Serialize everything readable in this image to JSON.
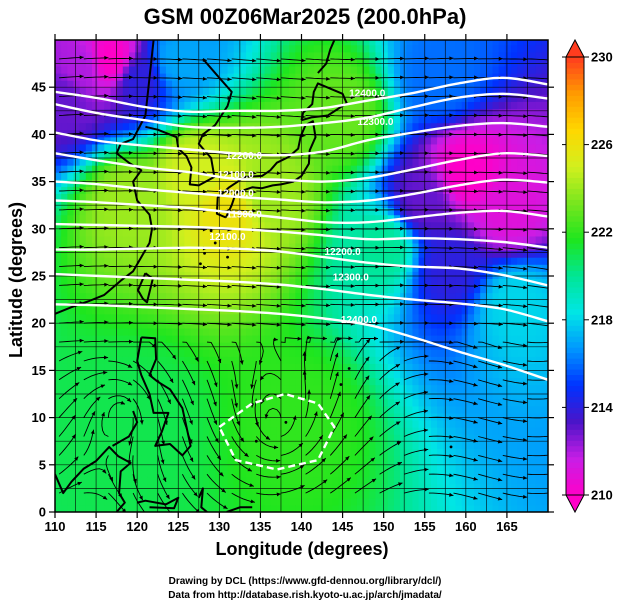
{
  "chart_data": {
    "type": "heatmap",
    "title": "GSM 00Z06Mar2025 (200.0hPa)",
    "xlabel": "Longitude (degrees)",
    "ylabel": "Latitude  (degrees)",
    "xlim": [
      110,
      170
    ],
    "ylim": [
      0,
      50
    ],
    "x_ticks": [
      "110",
      "115",
      "120",
      "125",
      "130",
      "135",
      "140",
      "145",
      "150",
      "155",
      "160",
      "165"
    ],
    "y_ticks": [
      "0",
      "5",
      "10",
      "15",
      "20",
      "25",
      "30",
      "35",
      "40",
      "45"
    ],
    "colorbar": {
      "min": 210,
      "max": 230,
      "ticks": [
        "210",
        "214",
        "218",
        "222",
        "226",
        "230"
      ],
      "colors": [
        "#ff00c8",
        "#c81ee6",
        "#4b14c8",
        "#0032ff",
        "#0096ff",
        "#00e6e6",
        "#00e696",
        "#1ee61e",
        "#78e61e",
        "#d2f01e",
        "#ffd700",
        "#ff9b00",
        "#ff3c1e"
      ]
    },
    "temperature_field": [
      {
        "lon": 113,
        "lat": 47,
        "value": 212
      },
      {
        "lon": 117,
        "lat": 48,
        "value": 210
      },
      {
        "lon": 111,
        "lat": 44,
        "value": 213
      },
      {
        "lon": 120,
        "lat": 46,
        "value": 214
      },
      {
        "lon": 125,
        "lat": 48,
        "value": 217
      },
      {
        "lon": 127,
        "lat": 36,
        "value": 225
      },
      {
        "lon": 131,
        "lat": 32,
        "value": 226
      },
      {
        "lon": 119,
        "lat": 33,
        "value": 224
      },
      {
        "lon": 136,
        "lat": 34,
        "value": 224
      },
      {
        "lon": 145,
        "lat": 42,
        "value": 223
      },
      {
        "lon": 157,
        "lat": 46,
        "value": 216
      },
      {
        "lon": 160,
        "lat": 36,
        "value": 210
      },
      {
        "lon": 155,
        "lat": 33,
        "value": 213
      },
      {
        "lon": 165,
        "lat": 32,
        "value": 211
      },
      {
        "lon": 158,
        "lat": 26,
        "value": 214
      },
      {
        "lon": 166,
        "lat": 22,
        "value": 218
      },
      {
        "lon": 150,
        "lat": 28,
        "value": 220
      },
      {
        "lon": 140,
        "lat": 10,
        "value": 222
      },
      {
        "lon": 120,
        "lat": 10,
        "value": 221
      }
    ],
    "height_contours": [
      {
        "label": "12400.0",
        "values": [
          44.5,
          43.8,
          42.9,
          42.4,
          42.5,
          42.5,
          42.8,
          43.6,
          44.4,
          45.4,
          46.0,
          45.3
        ]
      },
      {
        "label": "12300.0",
        "values": [
          43.2,
          42.2,
          41.5,
          40.8,
          40.7,
          40.8,
          41.2,
          41.8,
          42.9,
          43.9,
          44.3,
          43.8
        ]
      },
      {
        "label": "12200.0",
        "values": [
          40.2,
          39.3,
          38.8,
          38.4,
          38.0,
          37.8,
          38.2,
          39.4,
          40.2,
          40.9,
          41.2,
          40.8
        ]
      },
      {
        "label": "12100.0",
        "values": [
          38.0,
          37.2,
          36.5,
          36.0,
          35.3,
          35.2,
          35.0,
          35.4,
          36.3,
          37.3,
          38.0,
          37.7
        ]
      },
      {
        "label": "12000.0",
        "values": [
          35.0,
          34.7,
          34.2,
          33.8,
          33.4,
          33.1,
          32.8,
          33.0,
          33.7,
          34.6,
          35.2,
          34.9
        ]
      },
      {
        "label": "11900.0",
        "values": [
          33.0,
          32.8,
          32.5,
          32.2,
          31.7,
          31.2,
          30.7,
          30.7,
          31.2,
          31.7,
          31.9,
          31.3
        ]
      },
      {
        "label": "12100.0",
        "values": [
          30.5,
          30.4,
          30.3,
          30.2,
          30.0,
          29.7,
          29.3,
          28.9,
          29.0,
          28.9,
          28.6,
          28.0
        ]
      },
      {
        "label": "12200.0",
        "values": [
          27.8,
          27.8,
          27.9,
          28.0,
          27.9,
          27.6,
          27.0,
          26.4,
          26.0,
          25.8,
          25.1,
          24.0
        ]
      },
      {
        "label": "12300.0",
        "values": [
          25.2,
          25.0,
          24.8,
          24.6,
          24.4,
          24.1,
          23.6,
          23.0,
          22.5,
          22.1,
          21.5,
          20.2
        ]
      },
      {
        "label": "12400.0",
        "values": [
          22.0,
          21.9,
          21.7,
          21.5,
          21.3,
          21.0,
          20.5,
          19.8,
          18.5,
          17.0,
          15.6,
          14.0
        ]
      }
    ],
    "contour_labels": [
      {
        "text": "12400.0",
        "lon": 148,
        "lat": 44
      },
      {
        "text": "12300.0",
        "lon": 149,
        "lat": 41
      },
      {
        "text": "12200.0",
        "lon": 133,
        "lat": 37.4
      },
      {
        "text": "12100.0",
        "lon": 132,
        "lat": 35.4
      },
      {
        "text": "12000.0",
        "lon": 132,
        "lat": 33.4
      },
      {
        "text": "11900.0",
        "lon": 133,
        "lat": 31.2
      },
      {
        "text": "12100.0",
        "lon": 131,
        "lat": 28.8
      },
      {
        "text": "12200.0",
        "lon": 145,
        "lat": 27.2
      },
      {
        "text": "12300.0",
        "lon": 146,
        "lat": 24.5
      },
      {
        "text": "12400.0",
        "lon": 147,
        "lat": 20.0
      }
    ],
    "anticyclone_loop": {
      "lon": [
        130,
        134,
        138,
        142,
        144,
        142,
        137,
        132,
        130
      ],
      "lat": [
        9,
        11.5,
        12.5,
        11.5,
        9,
        5.5,
        4.5,
        5.5,
        9
      ]
    },
    "wind_rows_lat": [
      48,
      46,
      44,
      42,
      40,
      38,
      36,
      34,
      32,
      30,
      28,
      26,
      24,
      22,
      20,
      18,
      16,
      14,
      12,
      10,
      8,
      6,
      4,
      2
    ],
    "wind_cols_lon": [
      112,
      115,
      118,
      121,
      124,
      127,
      130,
      133,
      136,
      139,
      142,
      145,
      148,
      151,
      154,
      157,
      160,
      163,
      166,
      169
    ],
    "legend": "right-colorbar"
  },
  "footer": {
    "drawing_credit": "Drawing by DCL (https://www.gfd-dennou.org/library/dcl/)",
    "data_credit": "Data from http://database.rish.kyoto-u.ac.jp/arch/jmadata/"
  }
}
